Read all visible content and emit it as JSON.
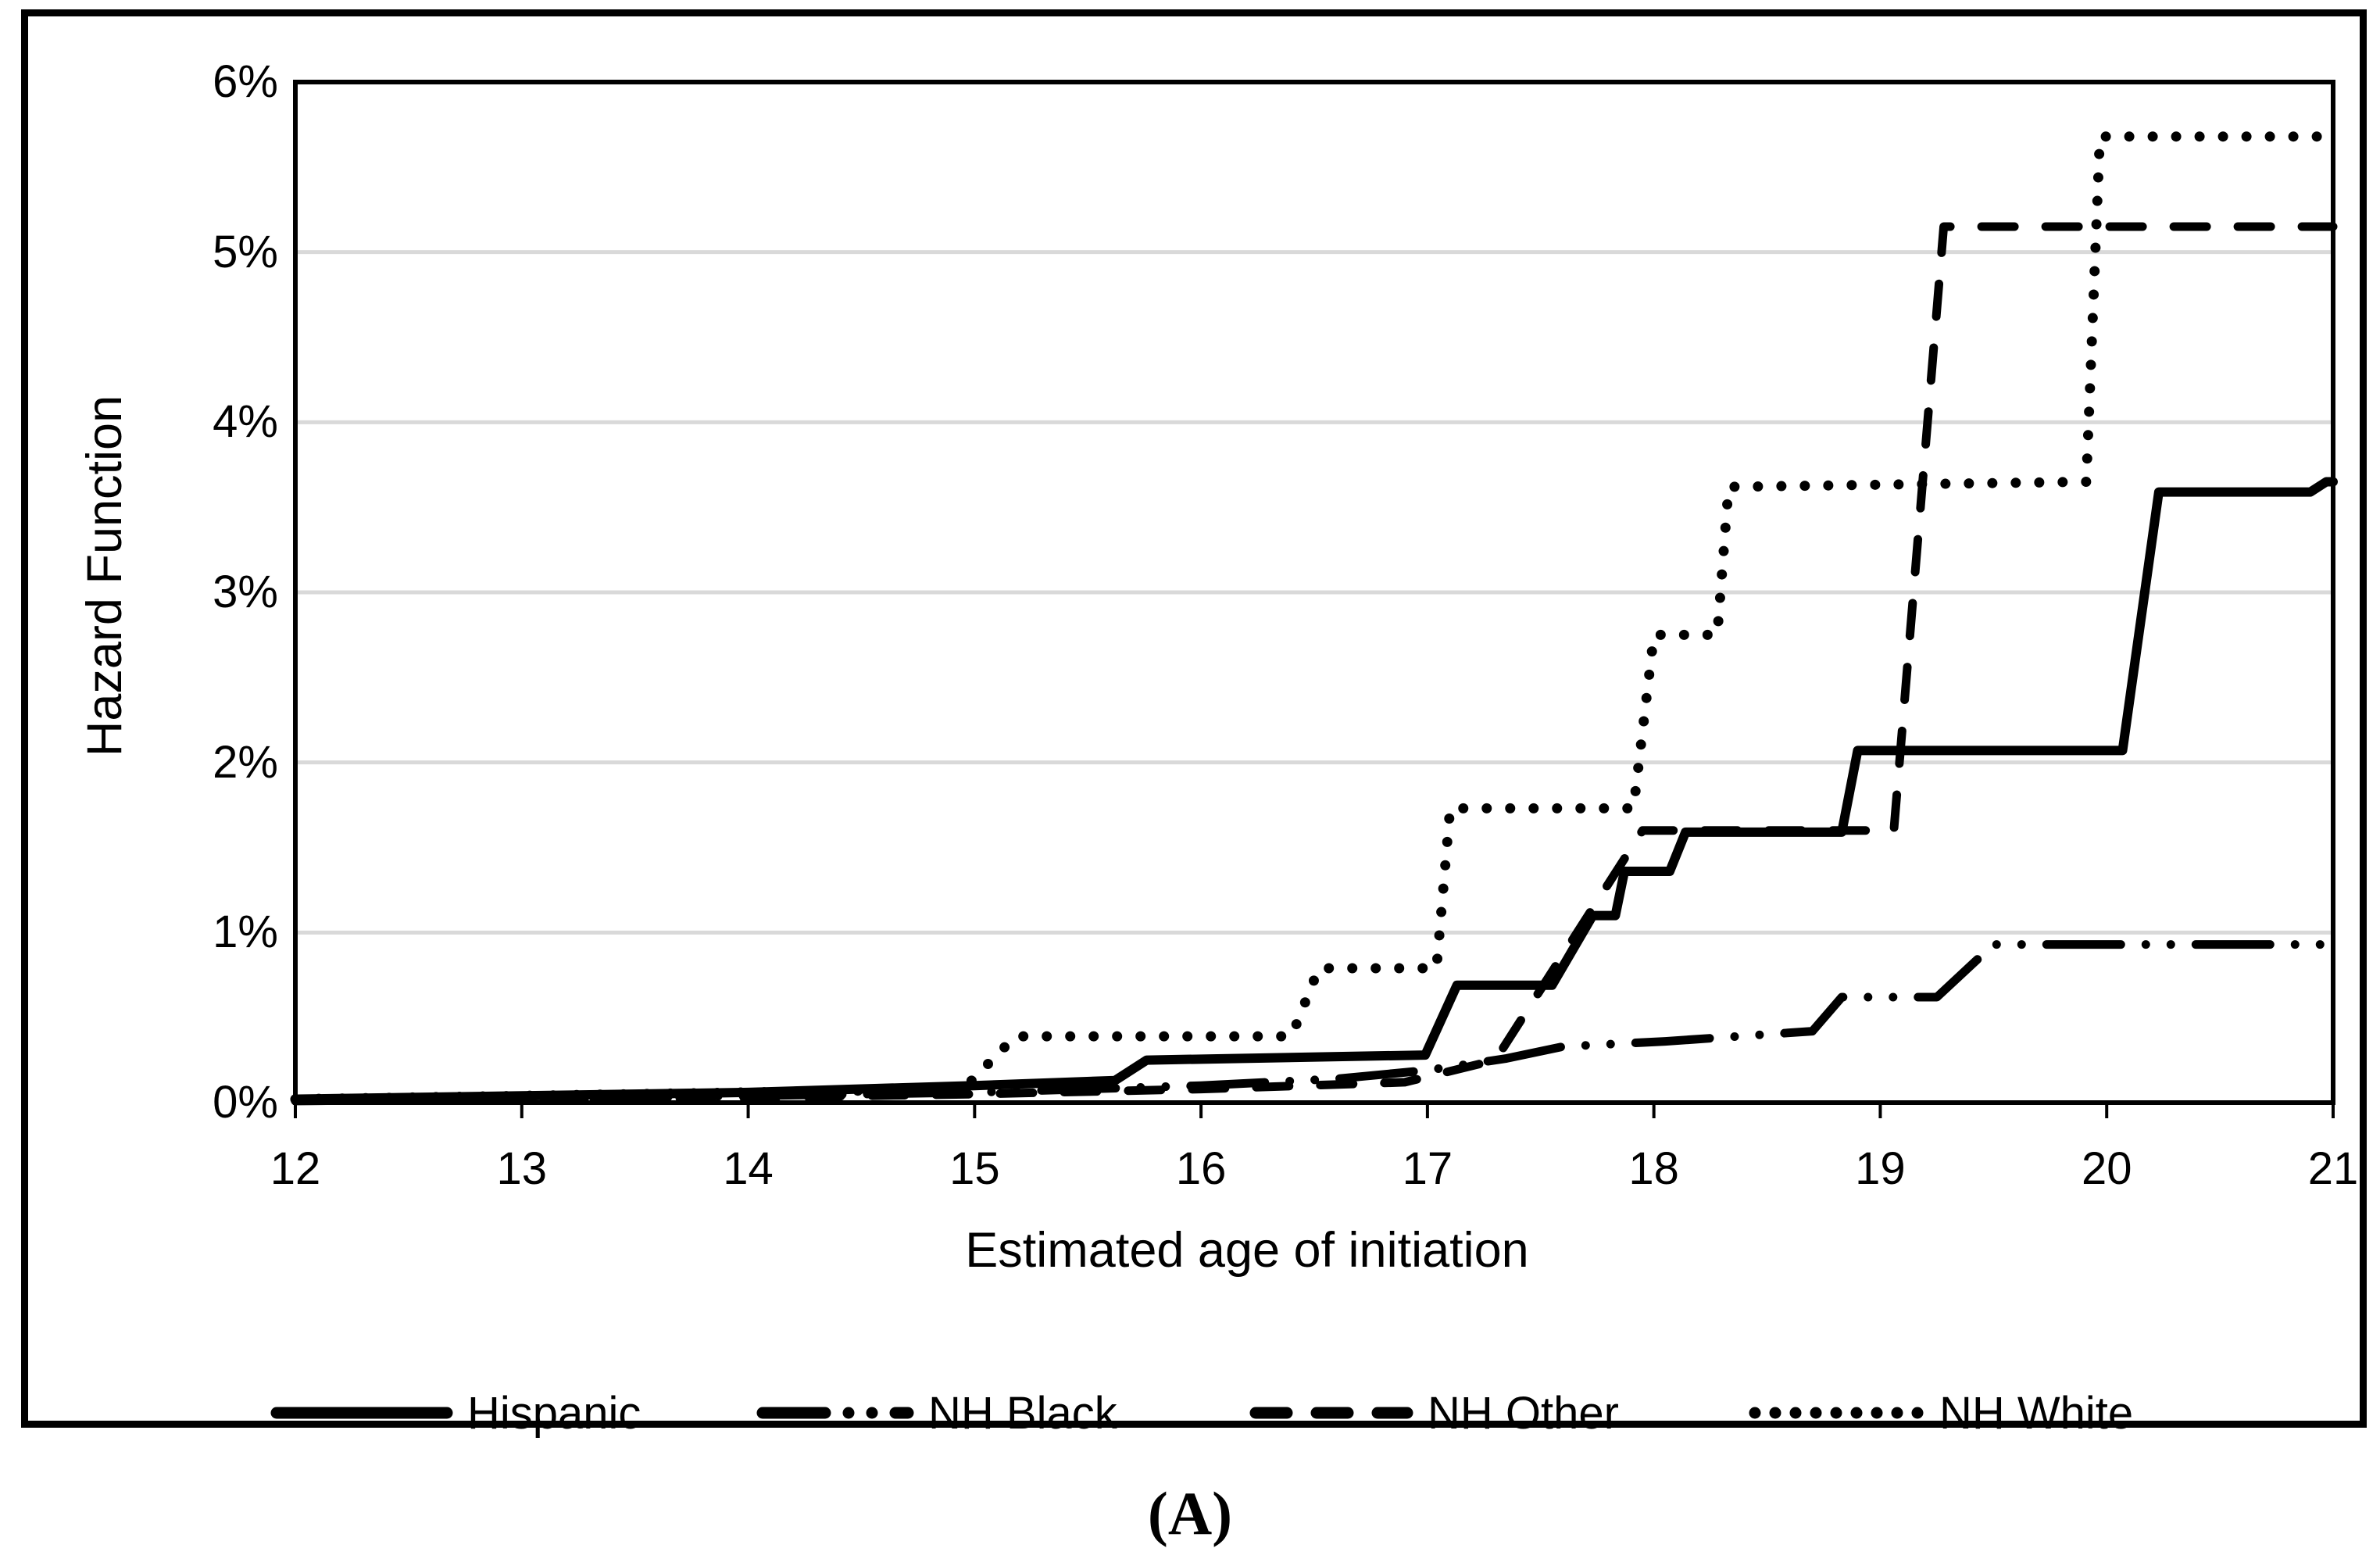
{
  "figure": {
    "caption": "(A)"
  },
  "colors": {
    "line": "#000000",
    "grid": "#d9d9d9",
    "background": "#ffffff",
    "frame": "#000000"
  },
  "chart_data": {
    "type": "line",
    "title": "",
    "xlabel": "Estimated age of initiation",
    "ylabel": "Hazard Function",
    "xlim": [
      12,
      21
    ],
    "ylim": [
      0,
      6
    ],
    "x_ticks": [
      "12",
      "13",
      "14",
      "15",
      "16",
      "17",
      "18",
      "19",
      "20",
      "21"
    ],
    "y_ticks": [
      "0%",
      "1%",
      "2%",
      "3%",
      "4%",
      "5%",
      "6%"
    ],
    "grid": "horizontal-gridlines-1to5pct",
    "legend_position": "bottom",
    "units": "percent",
    "series": [
      {
        "name": "Hispanic",
        "line_style": "solid",
        "points": [
          [
            12,
            0.02
          ],
          [
            13,
            0.04
          ],
          [
            14,
            0.06
          ],
          [
            15,
            0.1
          ],
          [
            15.62,
            0.13
          ],
          [
            15.76,
            0.25
          ],
          [
            16.99,
            0.28
          ],
          [
            17.13,
            0.69
          ],
          [
            17.55,
            0.69
          ],
          [
            17.73,
            1.1
          ],
          [
            17.83,
            1.1
          ],
          [
            17.87,
            1.36
          ],
          [
            18.07,
            1.36
          ],
          [
            18.14,
            1.59
          ],
          [
            18.83,
            1.59
          ],
          [
            18.9,
            2.07
          ],
          [
            20.07,
            2.07
          ],
          [
            20.23,
            3.59
          ],
          [
            20.9,
            3.59
          ],
          [
            20.97,
            3.65
          ],
          [
            21,
            3.65
          ]
        ]
      },
      {
        "name": "NH Black",
        "line_style": "dash-dot-dot",
        "points": [
          [
            12,
            0.01
          ],
          [
            13,
            0.02
          ],
          [
            14,
            0.04
          ],
          [
            15,
            0.06
          ],
          [
            16,
            0.1
          ],
          [
            16.6,
            0.14
          ],
          [
            17.0,
            0.19
          ],
          [
            17.35,
            0.26
          ],
          [
            17.6,
            0.33
          ],
          [
            18.05,
            0.36
          ],
          [
            18.7,
            0.42
          ],
          [
            18.83,
            0.62
          ],
          [
            19.25,
            0.62
          ],
          [
            19.5,
            0.93
          ],
          [
            21,
            0.93
          ]
        ]
      },
      {
        "name": "NH Other",
        "line_style": "dashed",
        "points": [
          [
            12,
            0.01
          ],
          [
            13,
            0.02
          ],
          [
            14,
            0.03
          ],
          [
            15,
            0.05
          ],
          [
            16,
            0.08
          ],
          [
            16.9,
            0.12
          ],
          [
            17.3,
            0.25
          ],
          [
            17.95,
            1.6
          ],
          [
            19.06,
            1.6
          ],
          [
            19.28,
            5.15
          ],
          [
            21,
            5.15
          ]
        ]
      },
      {
        "name": "NH White",
        "line_style": "dotted",
        "points": [
          [
            12,
            0.02
          ],
          [
            13,
            0.04
          ],
          [
            14,
            0.06
          ],
          [
            14.95,
            0.08
          ],
          [
            15.18,
            0.39
          ],
          [
            16.4,
            0.39
          ],
          [
            16.52,
            0.79
          ],
          [
            17.04,
            0.79
          ],
          [
            17.1,
            1.73
          ],
          [
            17.91,
            1.73
          ],
          [
            18.0,
            2.75
          ],
          [
            18.28,
            2.75
          ],
          [
            18.33,
            3.62
          ],
          [
            19.91,
            3.65
          ],
          [
            19.97,
            5.68
          ],
          [
            21,
            5.68
          ]
        ]
      }
    ]
  }
}
